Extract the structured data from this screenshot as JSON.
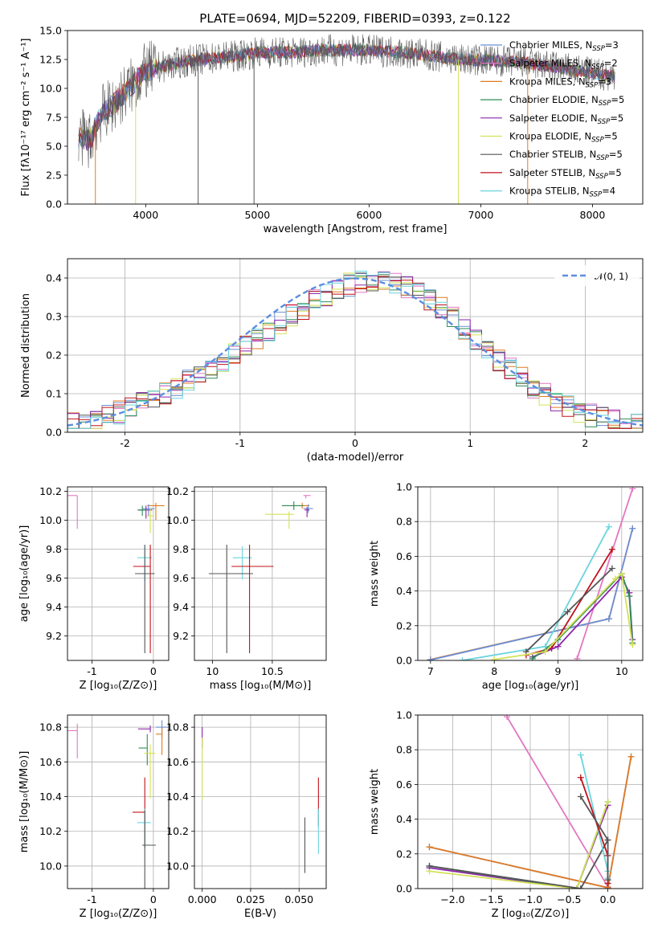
{
  "colors": {
    "chabrier_miles": "#6b8fd6",
    "salpeter_miles": "#e377c2",
    "kroupa_miles": "#e07b22",
    "chabrier_elodie": "#2e8b57",
    "salpeter_elodie": "#8e24aa",
    "kroupa_elodie": "#d4e157",
    "chabrier_stelib": "#555555",
    "salpeter_stelib": "#c0111a",
    "kroupa_stelib": "#6ad4dd",
    "grid": "#b0b0b0",
    "gauss": "#5b8ee0"
  },
  "chart_data": [
    {
      "id": "spectrum",
      "type": "line",
      "title": "PLATE=0694, MJD=52209, FIBERID=0393, z=0.122",
      "xlabel": "wavelength [Angstrom, rest frame]",
      "ylabel": "Flux [fλ10⁻¹⁷ erg cm⁻² s⁻¹ A⁻¹]",
      "xlim": [
        3300,
        8450
      ],
      "ylim": [
        0,
        15
      ],
      "xticks": [
        4000,
        5000,
        6000,
        7000,
        8000
      ],
      "yticks": [
        0.0,
        2.5,
        5.0,
        7.5,
        10.0,
        12.5,
        15.0
      ],
      "grid": false,
      "legend_placement": "top-right",
      "continuum": {
        "x": [
          3400,
          3500,
          3600,
          3700,
          3800,
          3900,
          4000,
          4200,
          4400,
          4600,
          4800,
          5000,
          5300,
          5600,
          5900,
          6200,
          6500,
          6800,
          7100,
          7400,
          7700,
          8000,
          8200
        ],
        "y": [
          5.8,
          5.5,
          7.8,
          8.5,
          9.5,
          10.5,
          11.5,
          12.0,
          12.4,
          12.6,
          12.8,
          13.1,
          13.1,
          13.3,
          13.3,
          13.2,
          12.9,
          12.5,
          12.4,
          12.2,
          11.8,
          11.3,
          11.0
        ]
      },
      "series": [
        {
          "name": "Chabrier MILES, N$_{SSP}$=3",
          "label": "Chabrier MILES, N",
          "sub": "SSP",
          "n": "=3",
          "color_key": "chabrier_miles"
        },
        {
          "name": "Salpeter MILES, N$_{SSP}$=2",
          "label": "Salpeter MILES, N",
          "sub": "SSP",
          "n": "=2",
          "color_key": "salpeter_miles"
        },
        {
          "name": "Kroupa MILES, N$_{SSP}$=3",
          "label": "Kroupa MILES, N",
          "sub": "SSP",
          "n": "=3",
          "color_key": "kroupa_miles"
        },
        {
          "name": "Chabrier ELODIE, N$_{SSP}$=5",
          "label": "Chabrier ELODIE, N",
          "sub": "SSP",
          "n": "=5",
          "color_key": "chabrier_elodie"
        },
        {
          "name": "Salpeter ELODIE, N$_{SSP}$=5",
          "label": "Salpeter ELODIE, N",
          "sub": "SSP",
          "n": "=5",
          "color_key": "salpeter_elodie"
        },
        {
          "name": "Kroupa ELODIE, N$_{SSP}$=5",
          "label": "Kroupa ELODIE, N",
          "sub": "SSP",
          "n": "=5",
          "color_key": "kroupa_elodie"
        },
        {
          "name": "Chabrier STELIB, N$_{SSP}$=5",
          "label": "Chabrier STELIB, N",
          "sub": "SSP",
          "n": "=5",
          "color_key": "chabrier_stelib"
        },
        {
          "name": "Salpeter STELIB, N$_{SSP}$=5",
          "label": "Salpeter STELIB, N",
          "sub": "SSP",
          "n": "=5",
          "color_key": "salpeter_stelib"
        },
        {
          "name": "Kroupa STELIB, N$_{SSP}$=4",
          "label": "Kroupa STELIB, N",
          "sub": "SSP",
          "n": "=4",
          "color_key": "kroupa_stelib"
        }
      ],
      "drops": [
        {
          "x": 3550,
          "color_key": "kroupa_miles"
        },
        {
          "x": 3910,
          "color_key": "kroupa_elodie"
        },
        {
          "x": 4470,
          "color_key": "chabrier_stelib"
        },
        {
          "x": 4970,
          "color_key": "chabrier_stelib"
        },
        {
          "x": 6800,
          "color_key": "kroupa_elodie"
        },
        {
          "x": 7420,
          "color_key": "kroupa_miles"
        }
      ]
    },
    {
      "id": "residuals",
      "type": "line",
      "xlabel": "(data-model)/error",
      "ylabel": "Normed distribution",
      "xlim": [
        -2.5,
        2.5
      ],
      "ylim": [
        0,
        0.45
      ],
      "xticks": [
        -2,
        -1,
        0,
        1,
        2
      ],
      "yticks": [
        0.0,
        0.1,
        0.2,
        0.3,
        0.4
      ],
      "grid": true,
      "legend": "𝒩(0, 1)",
      "legend_placement": "top-right",
      "histogram": {
        "bin_width": 0.1,
        "jitter": 0.03
      }
    },
    {
      "id": "age-vs-metallicity",
      "type": "scatter",
      "xlabel": "Z [log₁₀(Z/Z⊙)]",
      "ylabel": "age  [log₁₀(age/yr)]",
      "xlim": [
        -1.4,
        0.25
      ],
      "ylim": [
        9.03,
        10.23
      ],
      "xticks": [
        -1,
        0
      ],
      "yticks": [
        9.2,
        9.4,
        9.6,
        9.8,
        10.0,
        10.2
      ],
      "grid": true,
      "points": [
        {
          "color_key": "salpeter_miles",
          "x": -1.24,
          "xerr": [
            0.18,
            0.0
          ],
          "y": 10.17,
          "yerr": [
            0.23,
            0.0
          ]
        },
        {
          "color_key": "kroupa_miles",
          "x": 0.04,
          "xerr": [
            0.14,
            0.14
          ],
          "y": 10.1,
          "yerr": [
            0.1,
            0.02
          ]
        },
        {
          "color_key": "chabrier_miles",
          "x": -0.08,
          "xerr": [
            0.1,
            0.1
          ],
          "y": 10.08,
          "yerr": [
            0.05,
            0.03
          ]
        },
        {
          "color_key": "salpeter_elodie",
          "x": -0.12,
          "xerr": [
            0.12,
            0.1
          ],
          "y": 10.07,
          "yerr": [
            0.06,
            0.03
          ]
        },
        {
          "color_key": "chabrier_elodie",
          "x": -0.18,
          "xerr": [
            0.08,
            0.08
          ],
          "y": 10.07,
          "yerr": [
            0.04,
            0.03
          ]
        },
        {
          "color_key": "kroupa_elodie",
          "x": -0.05,
          "xerr": [
            0.06,
            0.05
          ],
          "y": 10.03,
          "yerr": [
            0.12,
            0.05
          ]
        },
        {
          "color_key": "kroupa_stelib",
          "x": -0.14,
          "xerr": [
            0.12,
            0.12
          ],
          "y": 9.74,
          "yerr": [
            0.16,
            0.08
          ]
        },
        {
          "color_key": "salpeter_stelib",
          "x": -0.05,
          "xerr": [
            0.28,
            0.0
          ],
          "y": 9.68,
          "yerr": [
            0.6,
            0.15
          ]
        },
        {
          "color_key": "chabrier_stelib",
          "x": -0.14,
          "xerr": [
            0.16,
            0.16
          ],
          "y": 9.63,
          "yerr": [
            0.55,
            0.2
          ]
        }
      ]
    },
    {
      "id": "age-vs-mass",
      "type": "scatter",
      "xlabel": "mass [log₁₀(M/M⊙)]",
      "ylabel": "",
      "xlim": [
        9.85,
        10.95
      ],
      "ylim": [
        9.03,
        10.23
      ],
      "xticks": [
        10,
        10.5
      ],
      "yticks": [
        9.2,
        9.4,
        9.6,
        9.8,
        10.0,
        10.2
      ],
      "grid": true,
      "points": [
        {
          "color_key": "salpeter_miles",
          "x": 10.78,
          "xerr": [
            0.02,
            0.04
          ],
          "y": 10.17,
          "yerr": [
            0.02,
            0.0
          ]
        },
        {
          "color_key": "kroupa_miles",
          "x": 10.75,
          "xerr": [
            0.1,
            0.06
          ],
          "y": 10.1,
          "yerr": [
            0.02,
            0.02
          ]
        },
        {
          "color_key": "chabrier_miles",
          "x": 10.8,
          "xerr": [
            0.04,
            0.04
          ],
          "y": 10.08,
          "yerr": [
            0.03,
            0.03
          ]
        },
        {
          "color_key": "salpeter_elodie",
          "x": 10.79,
          "xerr": [
            0.02,
            0.02
          ],
          "y": 10.07,
          "yerr": [
            0.05,
            0.02
          ]
        },
        {
          "color_key": "chabrier_elodie",
          "x": 10.68,
          "xerr": [
            0.1,
            0.08
          ],
          "y": 10.1,
          "yerr": [
            0.03,
            0.03
          ]
        },
        {
          "color_key": "kroupa_elodie",
          "x": 10.64,
          "xerr": [
            0.2,
            0.04
          ],
          "y": 10.04,
          "yerr": [
            0.1,
            0.02
          ]
        },
        {
          "color_key": "kroupa_stelib",
          "x": 10.25,
          "xerr": [
            0.08,
            0.08
          ],
          "y": 9.74,
          "yerr": [
            0.15,
            0.08
          ]
        },
        {
          "color_key": "salpeter_stelib",
          "x": 10.31,
          "xerr": [
            0.15,
            0.2
          ],
          "y": 9.68,
          "yerr": [
            0.6,
            0.15
          ]
        },
        {
          "color_key": "chabrier_stelib",
          "x": 10.12,
          "xerr": [
            0.15,
            0.22
          ],
          "y": 9.63,
          "yerr": [
            0.55,
            0.2
          ]
        }
      ]
    },
    {
      "id": "weight-vs-age",
      "type": "line",
      "xlabel": "age  [log₁₀(age/yr)]",
      "ylabel": "mass weight",
      "xlim": [
        6.8,
        10.33
      ],
      "ylim": [
        0,
        1.0
      ],
      "xticks": [
        7,
        8,
        9,
        10
      ],
      "yticks": [
        0.0,
        0.2,
        0.4,
        0.6,
        0.8,
        1.0
      ],
      "grid": true,
      "series": [
        {
          "color_key": "salpeter_miles",
          "x": [
            9.3,
            10.17
          ],
          "y": [
            0.01,
            0.99
          ]
        },
        {
          "color_key": "kroupa_miles",
          "x": [
            7.0,
            9.8,
            10.17
          ],
          "y": [
            0.005,
            0.24,
            0.76
          ]
        },
        {
          "color_key": "chabrier_miles",
          "x": [
            7.0,
            9.8,
            10.17
          ],
          "y": [
            0.003,
            0.24,
            0.76
          ]
        },
        {
          "color_key": "kroupa_stelib",
          "x": [
            7.5,
            8.8,
            9.8
          ],
          "y": [
            0.0,
            0.08,
            0.77
          ]
        },
        {
          "color_key": "salpeter_stelib",
          "x": [
            8.5,
            8.9,
            9.85
          ],
          "y": [
            0.03,
            0.07,
            0.64
          ]
        },
        {
          "color_key": "chabrier_stelib",
          "x": [
            8.5,
            9.15,
            9.85
          ],
          "y": [
            0.05,
            0.28,
            0.53
          ]
        },
        {
          "color_key": "salpeter_elodie",
          "x": [
            8.6,
            9.0,
            10.0,
            10.12,
            10.17
          ],
          "y": [
            0.02,
            0.08,
            0.48,
            0.39,
            0.12
          ]
        },
        {
          "color_key": "chabrier_elodie",
          "x": [
            8.6,
            9.0,
            10.0,
            10.12,
            10.17
          ],
          "y": [
            0.01,
            0.12,
            0.5,
            0.37,
            0.1
          ]
        },
        {
          "color_key": "kroupa_elodie",
          "x": [
            8.0,
            8.8,
            9.9,
            10.0,
            10.17
          ],
          "y": [
            0.005,
            0.05,
            0.47,
            0.5,
            0.09
          ]
        }
      ]
    },
    {
      "id": "mass-vs-metallicity",
      "type": "scatter",
      "xlabel": "Z [log₁₀(Z/Z⊙)]",
      "ylabel": "mass [log₁₀(M/M⊙)]",
      "xlim": [
        -1.4,
        0.25
      ],
      "ylim": [
        9.87,
        10.87
      ],
      "xticks": [
        -1,
        0
      ],
      "yticks": [
        10.0,
        10.2,
        10.4,
        10.6,
        10.8
      ],
      "grid": true,
      "points": [
        {
          "color_key": "salpeter_miles",
          "x": -1.24,
          "xerr": [
            0.18,
            0.0
          ],
          "y": 10.78,
          "yerr": [
            0.16,
            0.04
          ]
        },
        {
          "color_key": "chabrier_miles",
          "x": 0.14,
          "xerr": [
            0.1,
            0.1
          ],
          "y": 10.8,
          "yerr": [
            0.06,
            0.04
          ]
        },
        {
          "color_key": "kroupa_miles",
          "x": 0.14,
          "xerr": [
            0.1,
            0.0
          ],
          "y": 10.76,
          "yerr": [
            0.12,
            0.04
          ]
        },
        {
          "color_key": "salpeter_elodie",
          "x": -0.05,
          "xerr": [
            0.2,
            0.0
          ],
          "y": 10.79,
          "yerr": [
            0.02,
            0.02
          ]
        },
        {
          "color_key": "chabrier_elodie",
          "x": -0.1,
          "xerr": [
            0.14,
            0.0
          ],
          "y": 10.68,
          "yerr": [
            0.1,
            0.08
          ]
        },
        {
          "color_key": "kroupa_elodie",
          "x": -0.05,
          "xerr": [
            0.1,
            0.08
          ],
          "y": 10.65,
          "yerr": [
            0.26,
            0.05
          ]
        },
        {
          "color_key": "salpeter_stelib",
          "x": -0.14,
          "xerr": [
            0.2,
            0.0
          ],
          "y": 10.31,
          "yerr": [
            0.2,
            0.2
          ]
        },
        {
          "color_key": "kroupa_stelib",
          "x": -0.14,
          "xerr": [
            0.12,
            0.1
          ],
          "y": 10.25,
          "yerr": [
            0.15,
            0.08
          ]
        },
        {
          "color_key": "chabrier_stelib",
          "x": -0.14,
          "xerr": [
            0.04,
            0.18
          ],
          "y": 10.12,
          "yerr": [
            0.25,
            0.2
          ]
        }
      ]
    },
    {
      "id": "mass-vs-ebv",
      "type": "scatter",
      "xlabel": "E(B-V)",
      "ylabel": "",
      "xlim": [
        -0.004,
        0.064
      ],
      "ylim": [
        9.87,
        10.87
      ],
      "xticks": [
        0.0,
        0.025,
        0.05
      ],
      "xticklabels": [
        "0.000",
        "0.025",
        "0.050"
      ],
      "yticks": [
        10.0,
        10.2,
        10.4,
        10.6,
        10.8
      ],
      "grid": true,
      "points": [
        {
          "color_key": "salpeter_elodie",
          "x": 0.0,
          "xerr": [
            0,
            0
          ],
          "y": 10.74,
          "yerr": [
            0.06,
            0.06
          ]
        },
        {
          "color_key": "kroupa_elodie",
          "x": 0.0,
          "xerr": [
            0,
            0
          ],
          "y": 10.56,
          "yerr": [
            0.18,
            0.18
          ]
        },
        {
          "color_key": "salpeter_stelib",
          "x": 0.06,
          "xerr": [
            0,
            0
          ],
          "y": 10.37,
          "yerr": [
            0.14,
            0.14
          ]
        },
        {
          "color_key": "kroupa_stelib",
          "x": 0.06,
          "xerr": [
            0,
            0
          ],
          "y": 10.2,
          "yerr": [
            0.13,
            0.13
          ]
        },
        {
          "color_key": "chabrier_stelib",
          "x": 0.053,
          "xerr": [
            0,
            0
          ],
          "y": 10.12,
          "yerr": [
            0.16,
            0.16
          ]
        }
      ]
    },
    {
      "id": "weight-vs-metallicity",
      "type": "line",
      "xlabel": "Z [log₁₀(Z/Z⊙)]",
      "ylabel": "mass weight",
      "xlim": [
        -2.45,
        0.45
      ],
      "ylim": [
        0,
        1.0
      ],
      "xticks": [
        -2.0,
        -1.5,
        -1.0,
        -0.5,
        0.0
      ],
      "xticklabels": [
        "−2.0",
        "−1.5",
        "−1.0",
        "−0.5",
        "0.0"
      ],
      "yticks": [
        0.0,
        0.2,
        0.4,
        0.6,
        0.8,
        1.0
      ],
      "grid": true,
      "series": [
        {
          "color_key": "salpeter_miles",
          "x": [
            -1.3,
            0.0
          ],
          "y": [
            0.99,
            0.01
          ]
        },
        {
          "color_key": "chabrier_miles",
          "x": [
            -2.3,
            0.0,
            0.3
          ],
          "y": [
            0.24,
            0.005,
            0.76
          ]
        },
        {
          "color_key": "kroupa_miles",
          "x": [
            -2.3,
            0.0,
            0.3
          ],
          "y": [
            0.24,
            0.005,
            0.76
          ]
        },
        {
          "color_key": "salpeter_elodie",
          "x": [
            -2.3,
            -0.4,
            0.0
          ],
          "y": [
            0.12,
            0.0,
            0.48
          ]
        },
        {
          "color_key": "chabrier_elodie",
          "x": [
            -2.3,
            -0.4,
            0.0
          ],
          "y": [
            0.13,
            0.0,
            0.5
          ]
        },
        {
          "color_key": "kroupa_elodie",
          "x": [
            -2.3,
            -0.4,
            0.0
          ],
          "y": [
            0.1,
            0.0,
            0.5
          ]
        },
        {
          "color_key": "chabrier_stelib",
          "x": [
            -2.3,
            -0.35,
            0.0
          ],
          "y": [
            0.13,
            0.0,
            0.28
          ]
        },
        {
          "color_key": "kroupa_stelib",
          "x": [
            -0.35,
            0.0,
            0.0
          ],
          "y": [
            0.77,
            0.1,
            0.06
          ]
        },
        {
          "color_key": "salpeter_stelib",
          "x": [
            -0.35,
            0.0,
            0.0
          ],
          "y": [
            0.64,
            0.19,
            0.03
          ]
        },
        {
          "color_key": "chabrier_stelib",
          "x": [
            -0.35,
            0.0,
            0.0
          ],
          "y": [
            0.53,
            0.28,
            0.05
          ]
        }
      ]
    }
  ]
}
